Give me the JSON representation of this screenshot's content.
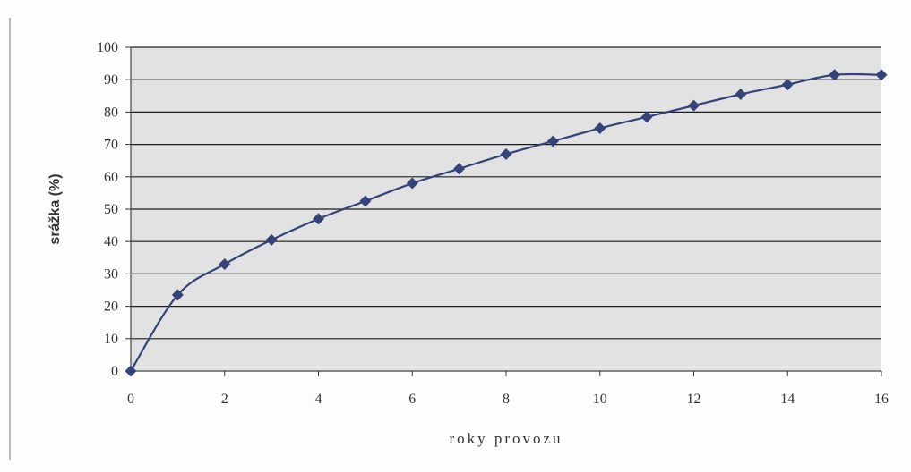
{
  "chart_data": {
    "type": "line",
    "title": "",
    "xlabel": "roky provozu",
    "ylabel": "srážka (%)",
    "xlim": [
      0,
      16
    ],
    "ylim": [
      0,
      100
    ],
    "x_ticks": [
      "0",
      "2",
      "4",
      "6",
      "8",
      "10",
      "12",
      "14",
      "16"
    ],
    "y_ticks": [
      "0",
      "10",
      "20",
      "30",
      "40",
      "50",
      "60",
      "70",
      "80",
      "90",
      "100"
    ],
    "grid": "horizontal",
    "legend": "none",
    "series": [
      {
        "x": [
          0,
          1,
          2,
          3,
          4,
          5,
          6,
          7,
          8,
          9,
          10,
          11,
          12,
          13,
          14,
          15,
          16
        ],
        "y": [
          0,
          23.5,
          33,
          40.5,
          47,
          52.5,
          58,
          62.5,
          67,
          71,
          75,
          78.5,
          82,
          85.5,
          88.5,
          91.5,
          91.5
        ],
        "color": "#34447a",
        "marker": "diamond"
      }
    ],
    "plot_bg": "#e2e2e2"
  }
}
